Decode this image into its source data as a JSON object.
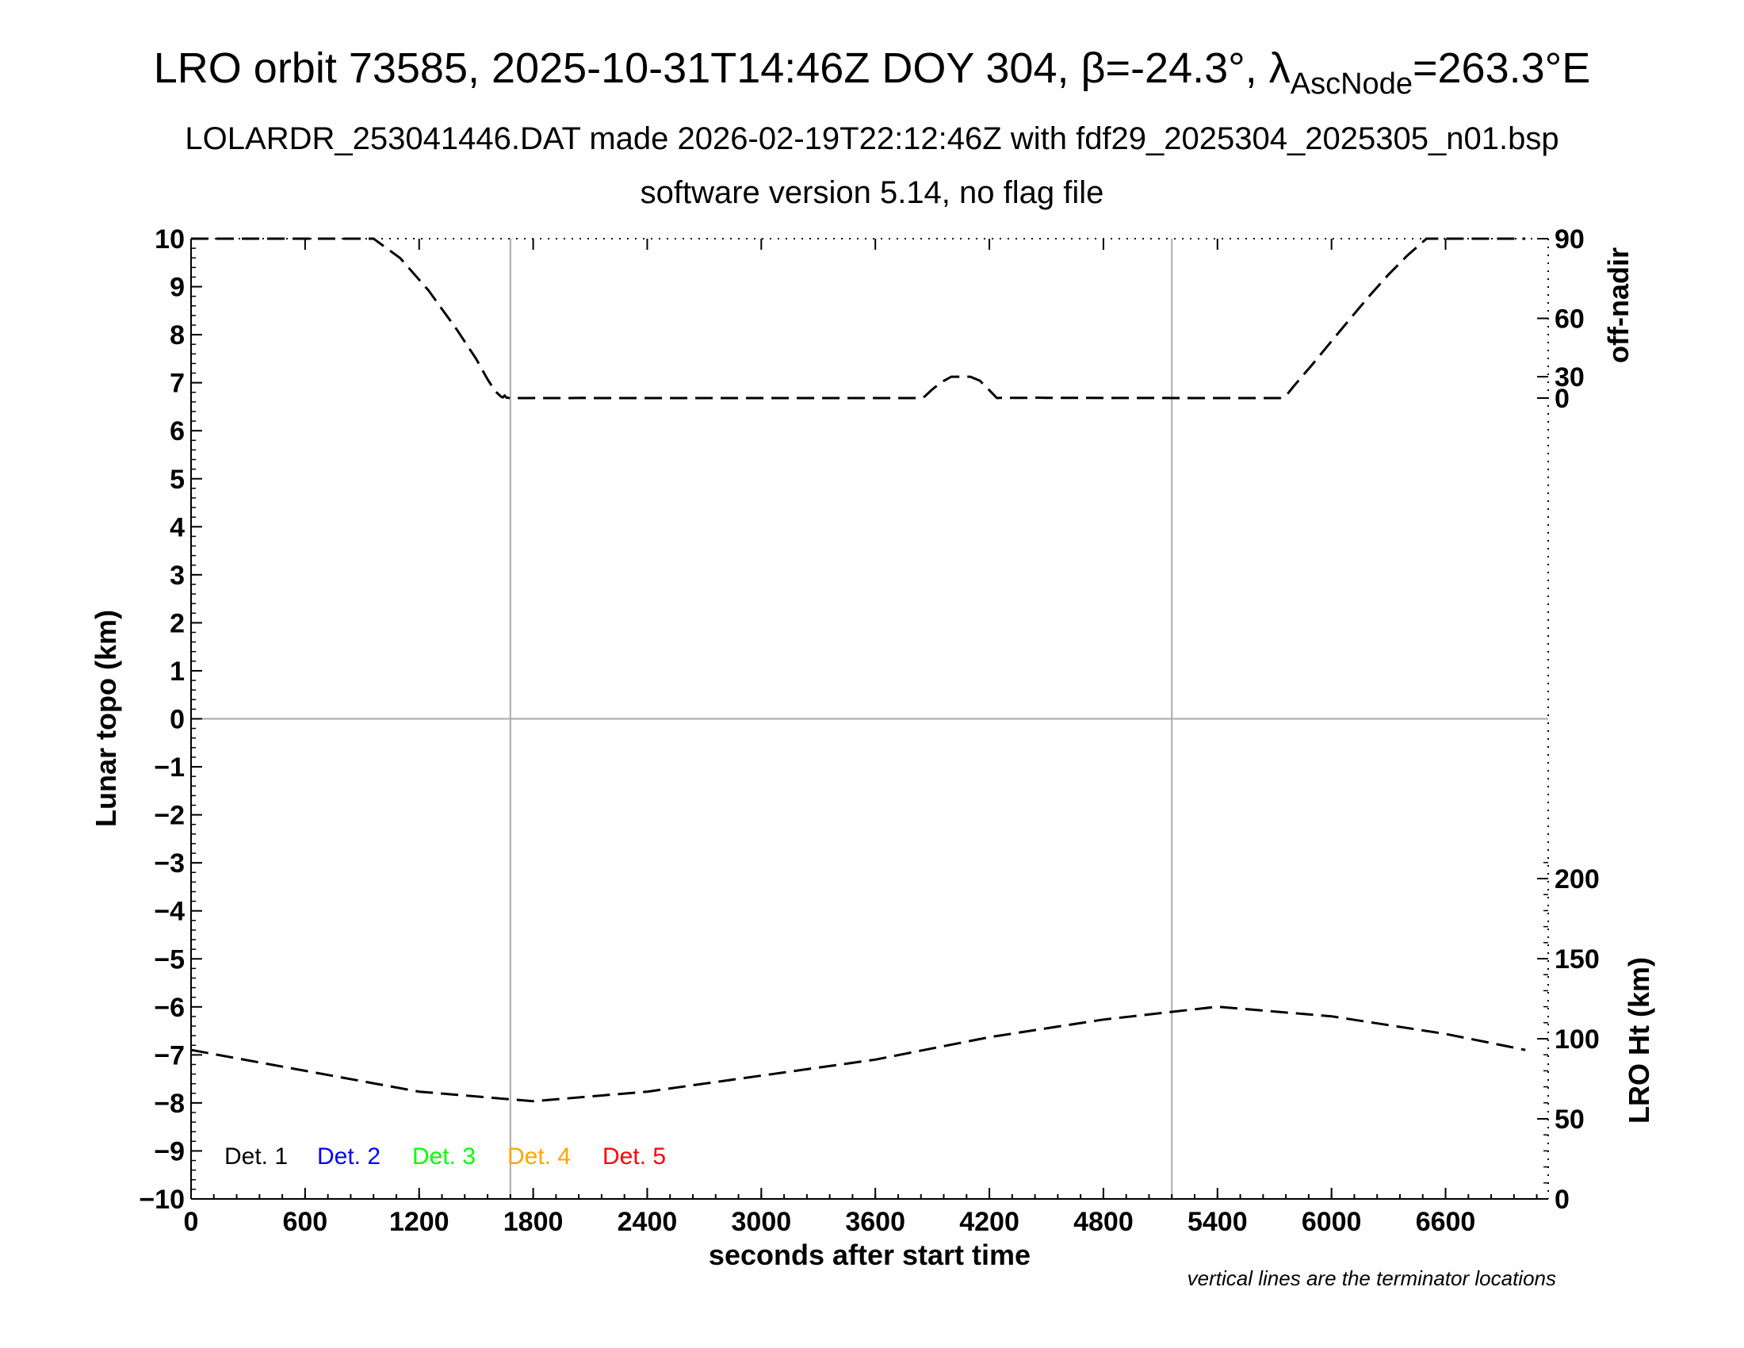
{
  "header": {
    "title_main": "LRO orbit 73585, 2025-10-31T14:46Z DOY 304, β=-24.3°, λ",
    "title_sub": "AscNode",
    "title_end": "=263.3°E",
    "subtitle_1": "LOLARDR_253041446.DAT made 2026-02-19T22:12:46Z with fdf29_2025304_2025305_n01.bsp",
    "subtitle_2": "software version 5.14, no flag file"
  },
  "footnote": "vertical lines are the terminator locations",
  "chart_data": {
    "type": "line",
    "xlabel": "seconds after start time",
    "ylabel_left": "Lunar topo (km)",
    "ylabel_right_top": "off-nadir",
    "ylabel_right_bottom": "LRO Ht (km)",
    "xlim": [
      0,
      7140
    ],
    "ylim_left": [
      -10,
      10
    ],
    "x_ticks": [
      "0",
      "600",
      "1200",
      "1800",
      "2400",
      "3000",
      "3600",
      "4200",
      "4800",
      "5400",
      "6000",
      "6600"
    ],
    "y_left_ticks": [
      "10",
      "9",
      "8",
      "7",
      "6",
      "5",
      "4",
      "3",
      "2",
      "1",
      "0",
      "−1",
      "−2",
      "−3",
      "−4",
      "−5",
      "−6",
      "−7",
      "−8",
      "−9",
      "−10"
    ],
    "off_nadir_ticks": [
      "90",
      "60",
      "30",
      "0"
    ],
    "lro_ht_ticks": [
      "200",
      "150",
      "100",
      "50",
      "0"
    ],
    "terminator_lines_s": [
      1680,
      5160
    ],
    "grid": "zero line and terminator lines only",
    "legend": {
      "placement": "bottom-left",
      "entries": [
        {
          "label": "Det. 1",
          "color": "#000000"
        },
        {
          "label": "Det. 2",
          "color": "#0000ff"
        },
        {
          "label": "Det. 3",
          "color": "#00ff00"
        },
        {
          "label": "Det. 4",
          "color": "#ffa500"
        },
        {
          "label": "Det. 5",
          "color": "#ff0000"
        }
      ]
    },
    "series": [
      {
        "axis": "off-nadir (deg)",
        "x": [
          0,
          960,
          1100,
          1250,
          1400,
          1500,
          1560,
          1600,
          1630,
          1640,
          1650,
          1660,
          1680,
          1700,
          1800,
          1820,
          1840,
          2000,
          2060,
          2100,
          2500,
          3000,
          3500,
          3840,
          3860,
          3900,
          3950,
          4000,
          4100,
          4150,
          4200,
          4240,
          4260,
          4300,
          4400,
          4450,
          4500,
          5000,
          5500,
          5730,
          5760,
          5800,
          5900,
          6000,
          6100,
          6200,
          6300,
          6400,
          6500,
          6600,
          6700,
          6800,
          7020
        ],
        "y": [
          90,
          90,
          83,
          71,
          55,
          41,
          28,
          17,
          8,
          5,
          10,
          4,
          1,
          1,
          1,
          4,
          1,
          1,
          3,
          1,
          1,
          1,
          1,
          1,
          8,
          19,
          26,
          30,
          30,
          27,
          18,
          1,
          3,
          3,
          3,
          4,
          3,
          2,
          1,
          1,
          9,
          22,
          38,
          50,
          60,
          69,
          77,
          84,
          90,
          90,
          90,
          90,
          90
        ]
      },
      {
        "axis": "LRO Ht (km)",
        "x": [
          0,
          600,
          1200,
          1800,
          2400,
          3000,
          3600,
          4200,
          4800,
          5400,
          6000,
          6600,
          7020
        ],
        "y": [
          93,
          80,
          67,
          61,
          67,
          77,
          87,
          101,
          112,
          120,
          114,
          103,
          93
        ]
      }
    ]
  }
}
